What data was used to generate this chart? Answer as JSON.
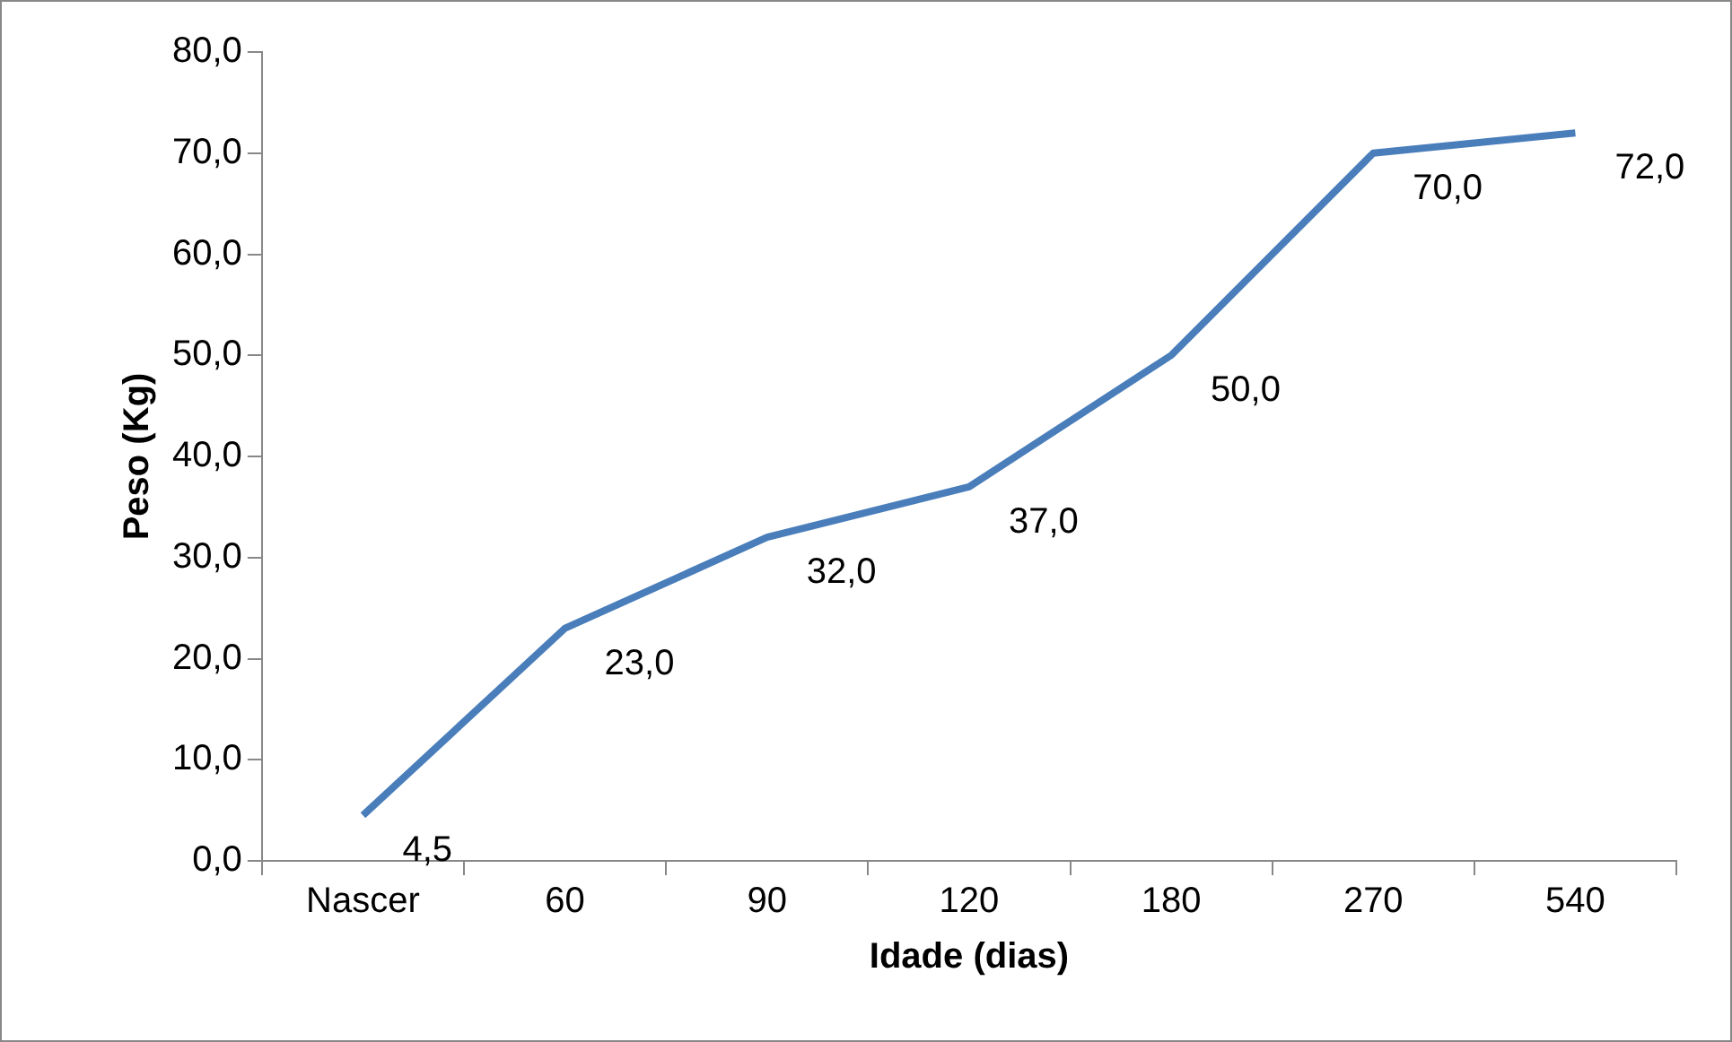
{
  "chart_data": {
    "type": "line",
    "xlabel": "Idade (dias)",
    "ylabel": "Peso (Kg)",
    "categories": [
      "Nascer",
      "60",
      "90",
      "120",
      "180",
      "270",
      "540"
    ],
    "series": [
      {
        "color": "#4a7ebb",
        "values": [
          4.5,
          23,
          32,
          37,
          50,
          70,
          72
        ],
        "value_labels": [
          "4,5",
          "23,0",
          "32,0",
          "37,0",
          "50,0",
          "70,0",
          "72,0"
        ]
      }
    ],
    "ylim": [
      0,
      80
    ],
    "yticks": [
      {
        "value": 0,
        "label": "0,0"
      },
      {
        "value": 10,
        "label": "10,0"
      },
      {
        "value": 20,
        "label": "20,0"
      },
      {
        "value": 30,
        "label": "30,0"
      },
      {
        "value": 40,
        "label": "40,0"
      },
      {
        "value": 50,
        "label": "50,0"
      },
      {
        "value": 60,
        "label": "60,0"
      },
      {
        "value": 70,
        "label": "70,0"
      },
      {
        "value": 80,
        "label": "80,0"
      }
    ],
    "grid": false,
    "legend": false,
    "marker": "none",
    "line_style": "solid"
  }
}
